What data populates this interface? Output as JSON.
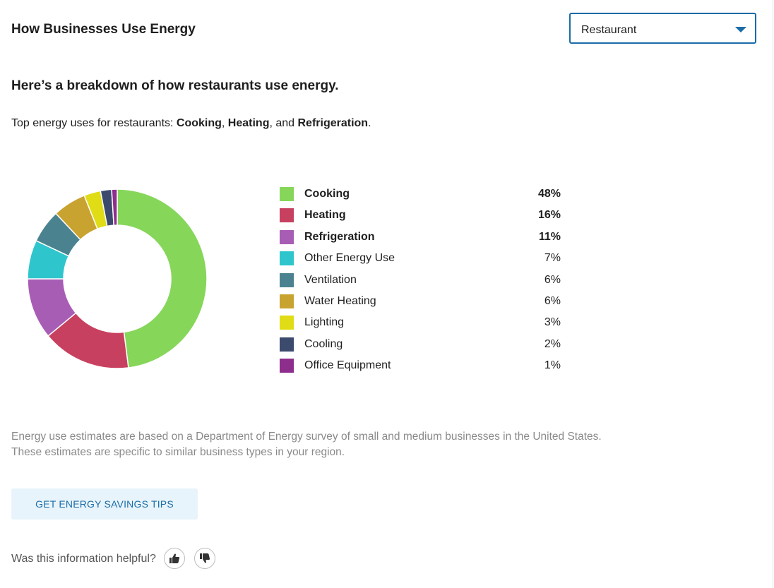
{
  "header": {
    "title": "How Businesses Use Energy"
  },
  "business_select": {
    "selected": "Restaurant"
  },
  "breakdown": {
    "heading": "Here’s a breakdown of how restaurants use energy.",
    "intro_prefix": "Top energy uses for restaurants: ",
    "top_uses": [
      "Cooking",
      "Heating",
      "Refrigeration"
    ],
    "sep1": ", ",
    "sep2": ", and ",
    "intro_suffix": "."
  },
  "chart_data": {
    "type": "pie",
    "categories": [
      "Cooking",
      "Heating",
      "Refrigeration",
      "Other Energy Use",
      "Ventilation",
      "Water Heating",
      "Lighting",
      "Cooling",
      "Office Equipment"
    ],
    "values": [
      48,
      16,
      11,
      7,
      6,
      6,
      3,
      2,
      1
    ],
    "colors": [
      "#86d65a",
      "#c8405f",
      "#a85db5",
      "#2ec6cc",
      "#4a838f",
      "#c9a330",
      "#e0dc16",
      "#3c4a6e",
      "#8e2e8c"
    ],
    "donut": true,
    "legend_placement": "right"
  },
  "legend": [
    {
      "label": "Cooking",
      "pct": "48%",
      "color": "#86d65a",
      "bold": true
    },
    {
      "label": "Heating",
      "pct": "16%",
      "color": "#c8405f",
      "bold": true
    },
    {
      "label": "Refrigeration",
      "pct": "11%",
      "color": "#a85db5",
      "bold": true
    },
    {
      "label": "Other Energy Use",
      "pct": "7%",
      "color": "#2ec6cc",
      "bold": false
    },
    {
      "label": "Ventilation",
      "pct": "6%",
      "color": "#4a838f",
      "bold": false
    },
    {
      "label": "Water Heating",
      "pct": "6%",
      "color": "#c9a330",
      "bold": false
    },
    {
      "label": "Lighting",
      "pct": "3%",
      "color": "#e0dc16",
      "bold": false
    },
    {
      "label": "Cooling",
      "pct": "2%",
      "color": "#3c4a6e",
      "bold": false
    },
    {
      "label": "Office Equipment",
      "pct": "1%",
      "color": "#8e2e8c",
      "bold": false
    }
  ],
  "footnote": {
    "line1": "Energy use estimates are based on a Department of Energy survey of small and medium businesses in the United States.",
    "line2": "These estimates are specific to similar business types in your region."
  },
  "cta": {
    "label": "GET ENERGY SAVINGS TIPS"
  },
  "feedback": {
    "question": "Was this information helpful?",
    "up_icon": "thumbs-up-icon",
    "down_icon": "thumbs-down-icon"
  }
}
